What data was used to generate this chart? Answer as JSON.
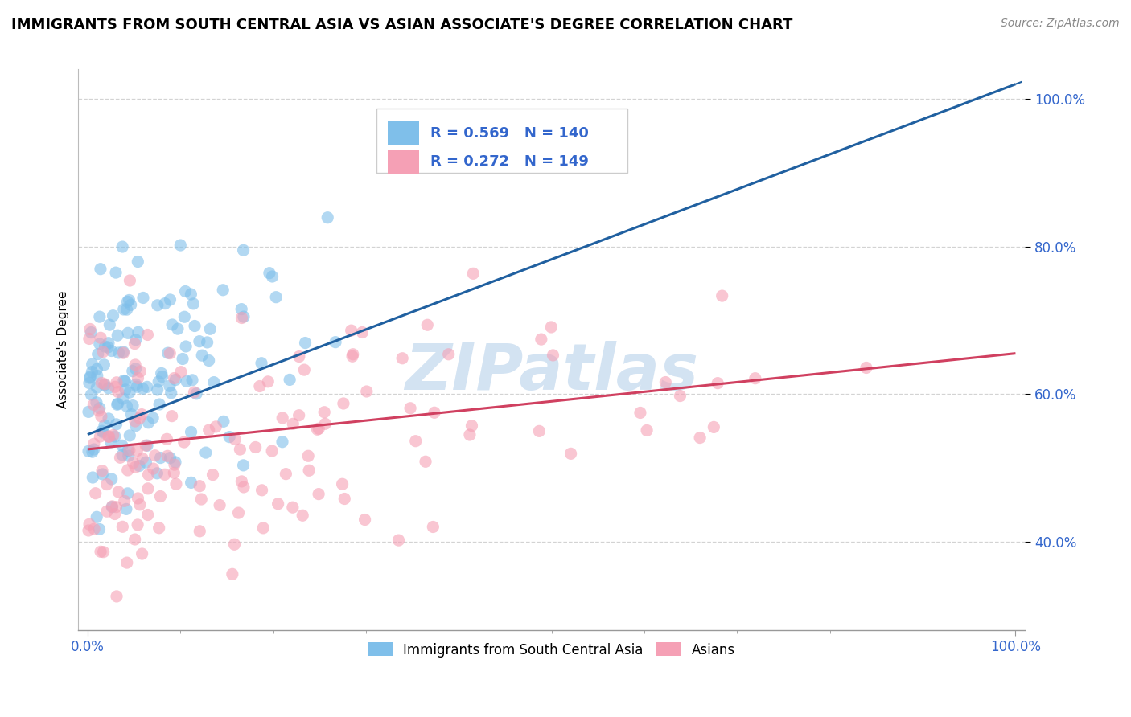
{
  "title": "IMMIGRANTS FROM SOUTH CENTRAL ASIA VS ASIAN ASSOCIATE'S DEGREE CORRELATION CHART",
  "source": "Source: ZipAtlas.com",
  "xlabel": "",
  "ylabel": "Associate's Degree",
  "xlim": [
    -0.01,
    1.01
  ],
  "ylim": [
    0.28,
    1.04
  ],
  "x_ticks": [
    0.0,
    1.0
  ],
  "x_tick_labels": [
    "0.0%",
    "100.0%"
  ],
  "y_ticks": [
    0.4,
    0.6,
    0.8,
    1.0
  ],
  "y_tick_labels": [
    "40.0%",
    "60.0%",
    "80.0%",
    "100.0%"
  ],
  "blue_color": "#7fbfea",
  "pink_color": "#f5a0b5",
  "blue_line_color": "#2060a0",
  "pink_line_color": "#d04060",
  "R_blue": 0.569,
  "N_blue": 140,
  "R_pink": 0.272,
  "N_pink": 149,
  "legend_text_color": "#3366cc",
  "title_fontsize": 13,
  "axis_label_fontsize": 11,
  "tick_fontsize": 12,
  "watermark": "ZIPatlas",
  "watermark_color": "#b0cce8",
  "background_color": "#ffffff",
  "grid_color": "#c8c8c8",
  "blue_line_start_y": 0.545,
  "blue_line_end_y": 1.02,
  "pink_line_start_y": 0.525,
  "pink_line_end_y": 0.655
}
